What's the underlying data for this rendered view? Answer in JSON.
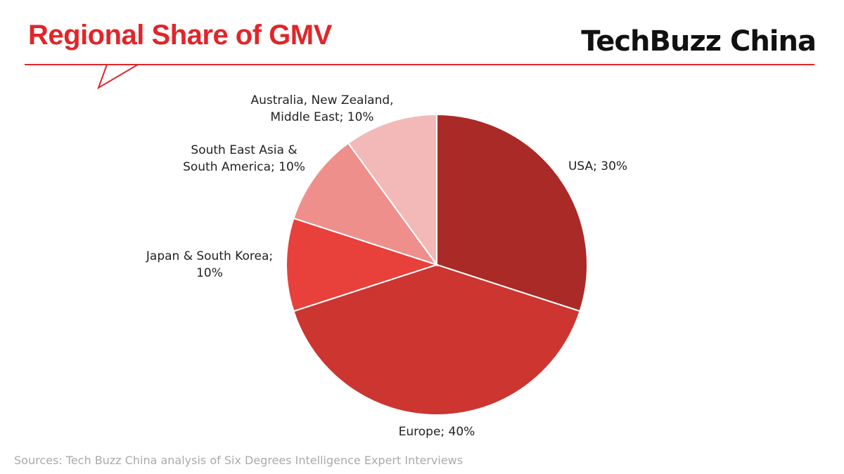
{
  "chart_data": {
    "type": "pie",
    "title": "Regional Share of GMV",
    "brand": "TechBuzz China",
    "source": "Sources: Tech Buzz China analysis of Six Degrees Intelligence Expert Interviews",
    "values": [
      30,
      40,
      10,
      10,
      10
    ],
    "value_labels": [
      "USA; 30%",
      "Europe; 40%",
      "Japan & South Korea; 10%",
      "South East Asia & South America; 10%",
      "Australia, New Zealand, Middle East; 10%"
    ],
    "colors": [
      "#a92a26",
      "#cc3530",
      "#e8403a",
      "#ef8f8c",
      "#f2b9b8"
    ]
  }
}
